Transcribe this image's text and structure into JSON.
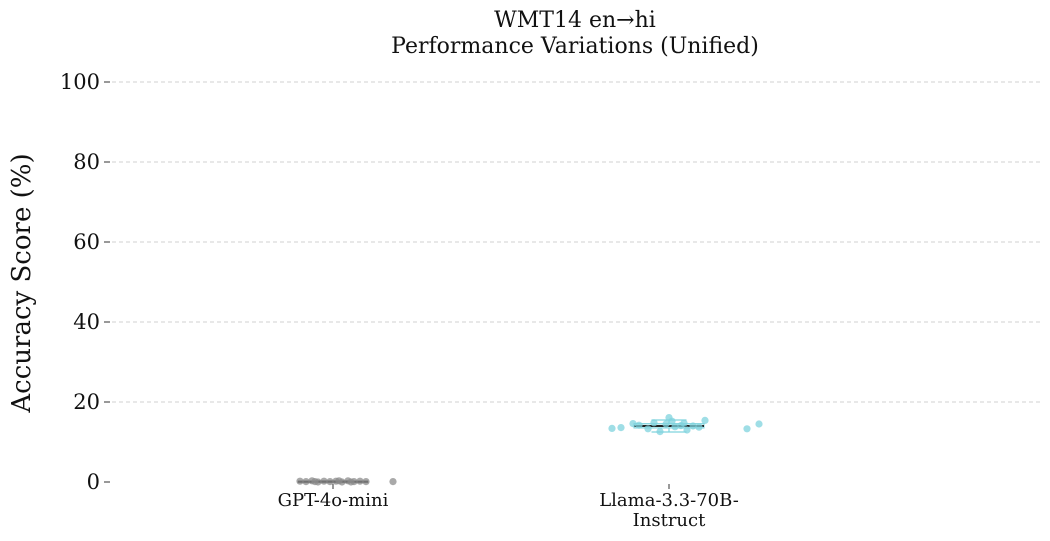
{
  "chart_data": {
    "type": "scatter",
    "title_lines": [
      "WMT14 en→hi",
      "Performance Variations (Unified)"
    ],
    "ylabel": "Accuracy Score (%)",
    "xlabel": "",
    "ylim": [
      0,
      100
    ],
    "yticks": [
      0,
      20,
      40,
      60,
      80,
      100
    ],
    "grid": true,
    "categories": [
      {
        "label_lines": [
          "GPT-4o-mini"
        ]
      },
      {
        "label_lines": [
          "Llama-3.3-70B-",
          "Instruct"
        ]
      }
    ],
    "series": [
      {
        "color": "#8c8c8c",
        "box": {
          "q1": 0.0,
          "median": 0.1,
          "q3": 0.2,
          "whisker_low": 0.0,
          "whisker_high": 0.3
        },
        "points": [
          {
            "dx": -0.22,
            "y": 0.2
          },
          {
            "dx": -0.18,
            "y": 0.1
          },
          {
            "dx": -0.14,
            "y": 0.3
          },
          {
            "dx": -0.1,
            "y": 0.0
          },
          {
            "dx": -0.06,
            "y": 0.2
          },
          {
            "dx": -0.02,
            "y": 0.1
          },
          {
            "dx": 0.02,
            "y": 0.2
          },
          {
            "dx": 0.06,
            "y": 0.0
          },
          {
            "dx": 0.1,
            "y": 0.3
          },
          {
            "dx": 0.14,
            "y": 0.1
          },
          {
            "dx": 0.18,
            "y": 0.2
          },
          {
            "dx": 0.22,
            "y": 0.1
          },
          {
            "dx": -0.12,
            "y": 0.1
          },
          {
            "dx": 0.04,
            "y": 0.3
          },
          {
            "dx": 0.12,
            "y": 0.0
          },
          {
            "dx": 0.4,
            "y": 0.1
          }
        ]
      },
      {
        "color": "#7fd3de",
        "box": {
          "q1": 13.5,
          "median": 14.0,
          "q3": 14.6,
          "whisker_low": 12.5,
          "whisker_high": 15.5
        },
        "points": [
          {
            "dx": -0.38,
            "y": 13.4
          },
          {
            "dx": -0.32,
            "y": 13.6
          },
          {
            "dx": -0.2,
            "y": 14.2
          },
          {
            "dx": -0.14,
            "y": 13.3
          },
          {
            "dx": -0.1,
            "y": 14.8
          },
          {
            "dx": -0.06,
            "y": 12.6
          },
          {
            "dx": -0.02,
            "y": 14.5
          },
          {
            "dx": 0.0,
            "y": 16.1
          },
          {
            "dx": 0.02,
            "y": 15.2
          },
          {
            "dx": 0.04,
            "y": 13.8
          },
          {
            "dx": 0.08,
            "y": 14.1
          },
          {
            "dx": 0.12,
            "y": 13.0
          },
          {
            "dx": 0.16,
            "y": 14.0
          },
          {
            "dx": 0.2,
            "y": 13.7
          },
          {
            "dx": 0.24,
            "y": 15.4
          },
          {
            "dx": -0.24,
            "y": 14.6
          },
          {
            "dx": 0.1,
            "y": 14.7
          },
          {
            "dx": 0.52,
            "y": 13.3
          },
          {
            "dx": 0.6,
            "y": 14.5
          }
        ]
      }
    ]
  }
}
